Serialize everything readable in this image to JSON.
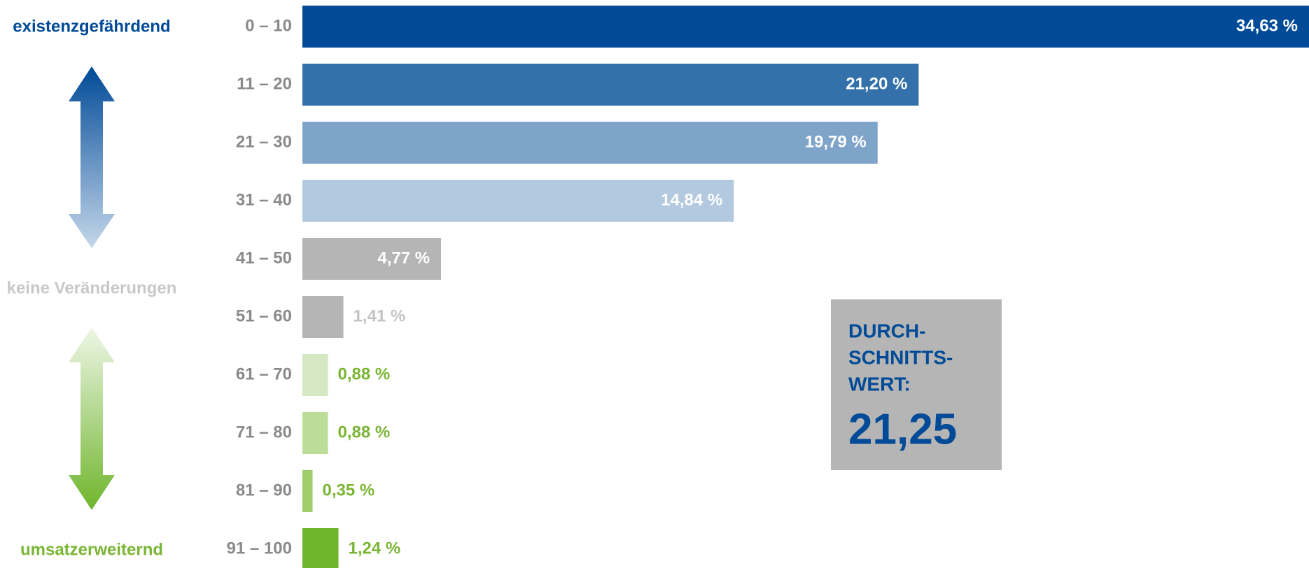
{
  "chart_data": {
    "type": "bar",
    "orientation": "horizontal",
    "categories": [
      "0 – 10",
      "11 – 20",
      "21 – 30",
      "31 – 40",
      "41 – 50",
      "51 – 60",
      "61 – 70",
      "71 – 80",
      "81 – 90",
      "91 – 100"
    ],
    "values": [
      34.63,
      21.2,
      19.79,
      14.84,
      4.77,
      1.41,
      0.88,
      0.88,
      0.35,
      1.24
    ],
    "value_labels": [
      "34,63 %",
      "21,20 %",
      "19,79 %",
      "14,84 %",
      "4,77 %",
      "1,41 %",
      "0,88 %",
      "0,88 %",
      "0,35 %",
      "1,24 %"
    ],
    "colors": [
      "#004a97",
      "#3471ab",
      "#7fa4ca",
      "#b3c9e0",
      "#b5b5b5",
      "#b5b5b5",
      "#d5e8c4",
      "#bcdc9a",
      "#9fcd6a",
      "#6fb52c"
    ],
    "label_colors": [
      "#ffffff",
      "#ffffff",
      "#ffffff",
      "#ffffff",
      "#ffffff",
      "#c4c4c4",
      "#7ab534",
      "#7ab534",
      "#7ab534",
      "#7ab534"
    ],
    "side_labels": {
      "top": "existenzgefährdend",
      "middle": "keine Veränderungen",
      "bottom": "umsatzerweiternd"
    },
    "average_label": [
      "DURCH-",
      "SCHNITTS-",
      "WERT:"
    ],
    "average_value": "21,25"
  }
}
